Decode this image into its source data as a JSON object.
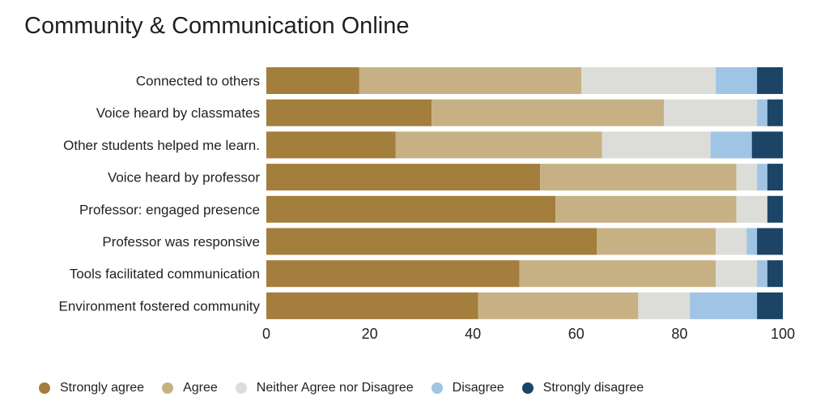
{
  "chart_data": {
    "type": "bar",
    "orientation": "horizontal",
    "stacked": true,
    "title": "Community & Communication Online",
    "categories": [
      "Connected to others",
      "Voice heard by classmates",
      "Other students helped me learn.",
      "Voice heard by professor",
      "Professor: engaged presence",
      "Professor was responsive",
      "Tools facilitated communication",
      "Environment fostered community"
    ],
    "series": [
      {
        "name": "Strongly agree",
        "color": "#a37e3c",
        "values": [
          18,
          32,
          25,
          53,
          56,
          64,
          49,
          41
        ]
      },
      {
        "name": "Agree",
        "color": "#c7b184",
        "values": [
          43,
          45,
          40,
          38,
          35,
          23,
          38,
          31
        ]
      },
      {
        "name": "Neither Agree nor Disagree",
        "color": "#dcdcd8",
        "values": [
          26,
          18,
          21,
          4,
          6,
          6,
          8,
          10
        ]
      },
      {
        "name": "Disagree",
        "color": "#a0c4e4",
        "values": [
          8,
          2,
          8,
          2,
          0,
          2,
          2,
          13
        ]
      },
      {
        "name": "Strongly disagree",
        "color": "#1c4466",
        "values": [
          5,
          3,
          6,
          3,
          3,
          5,
          3,
          5
        ]
      }
    ],
    "xticks": [
      0,
      20,
      40,
      60,
      80,
      100
    ],
    "xlim": [
      0,
      100
    ],
    "grid": false,
    "legend_position": "bottom"
  }
}
